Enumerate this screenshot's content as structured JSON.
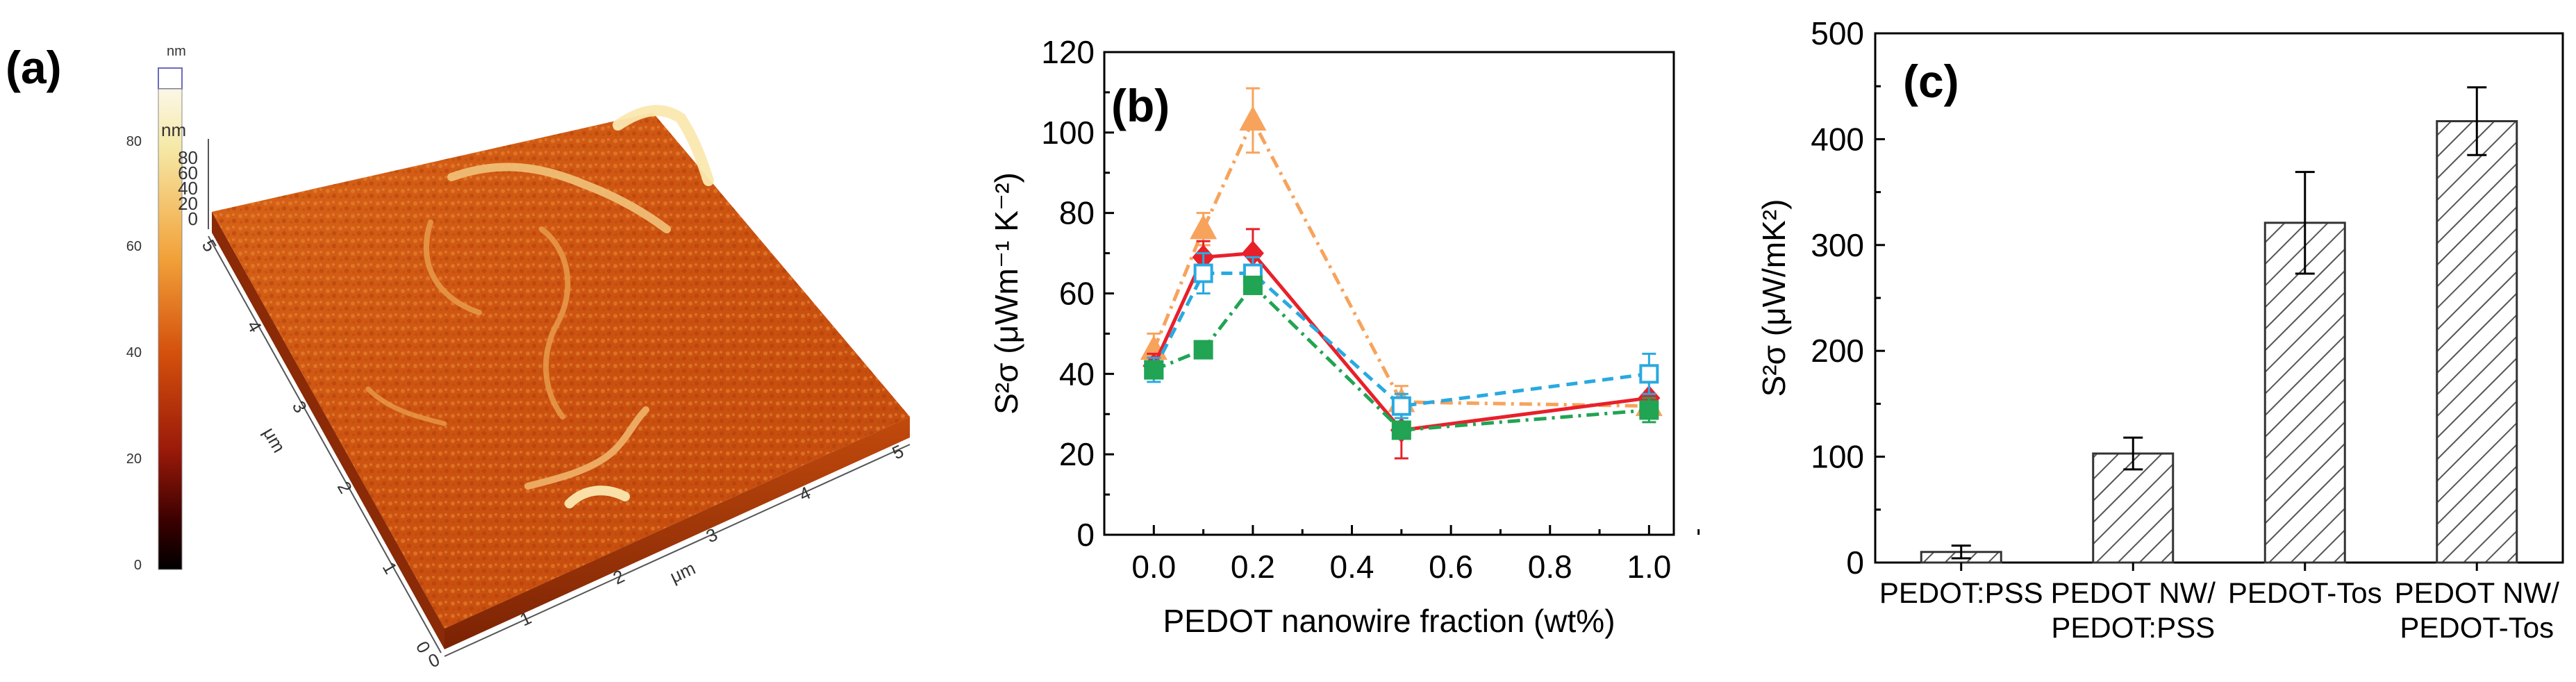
{
  "panels": {
    "a": {
      "label": "(a)"
    },
    "b": {
      "label": "(b)"
    },
    "c": {
      "label": "(c)"
    }
  },
  "afm": {
    "colorbar_unit": "nm",
    "colorbar_ticks": [
      "80",
      "60",
      "40",
      "20",
      "0"
    ],
    "z_unit": "nm",
    "z_ticks": [
      "80",
      "60",
      "40",
      "20",
      "0"
    ],
    "y_unit": "μm",
    "y_ticks": [
      "5",
      "4",
      "3",
      "2",
      "1",
      "0"
    ],
    "x_unit": "μm",
    "x_ticks": [
      "0",
      "1",
      "2",
      "3",
      "4",
      "5"
    ],
    "colors": {
      "low": "#3a0000",
      "mid": "#d4500c",
      "high": "#f8f2c0"
    }
  },
  "chart_data": [
    {
      "type": "line",
      "panel": "(b)",
      "xlabel": "PEDOT nanowire fraction (wt%)",
      "ylabel": "S²σ (μWm⁻¹ K⁻²)",
      "xlim": [
        -0.1,
        1.05
      ],
      "ylim": [
        0,
        120
      ],
      "xticks": [
        0.0,
        0.2,
        0.4,
        0.6,
        0.8,
        1.0
      ],
      "xtick_labels": [
        "0.0",
        "0.2",
        "0.4",
        "0.6",
        "0.8",
        "1.0"
      ],
      "yticks": [
        0,
        20,
        40,
        60,
        80,
        100,
        120
      ],
      "ytick_labels": [
        "0",
        "20",
        "40",
        "60",
        "80",
        "100",
        "120"
      ],
      "x": [
        0.0,
        0.1,
        0.2,
        0.5,
        1.0
      ],
      "series": [
        {
          "color": "#f7a35c",
          "marker": "triangle",
          "filled": true,
          "dash": "dashdot",
          "values": [
            46,
            76,
            103,
            33,
            32
          ],
          "errors": [
            4,
            4,
            8,
            4,
            3
          ]
        },
        {
          "color": "#e8202a",
          "marker": "diamond",
          "filled": true,
          "dash": "solid",
          "values": [
            42,
            69,
            70,
            26,
            34
          ],
          "errors": [
            3,
            4,
            6,
            7,
            4
          ]
        },
        {
          "color": "#2aa9e0",
          "marker": "square",
          "filled": false,
          "dash": "dashed",
          "values": [
            41,
            65,
            65,
            32,
            40
          ],
          "errors": [
            3,
            5,
            4,
            3,
            5
          ]
        },
        {
          "color": "#21a453",
          "marker": "square",
          "filled": true,
          "dash": "dashdot",
          "values": [
            41,
            46,
            62,
            26,
            31
          ],
          "errors": [
            2,
            1,
            2,
            2,
            3
          ]
        }
      ]
    },
    {
      "type": "bar",
      "panel": "(c)",
      "ylabel": "S²σ (μW/mK²)",
      "ylim": [
        0,
        500
      ],
      "yticks": [
        0,
        100,
        200,
        300,
        400,
        500
      ],
      "ytick_labels": [
        "0",
        "100",
        "200",
        "300",
        "400",
        "500"
      ],
      "categories": [
        "PEDOT:PSS",
        "PEDOT NW/ PEDOT:PSS",
        "PEDOT-Tos",
        "PEDOT NW/ PEDOT-Tos"
      ],
      "category_lines": [
        [
          "PEDOT:PSS"
        ],
        [
          "PEDOT NW/",
          "PEDOT:PSS"
        ],
        [
          "PEDOT-Tos"
        ],
        [
          "PEDOT NW/",
          "PEDOT-Tos"
        ]
      ],
      "values": [
        10,
        103,
        321,
        417
      ],
      "errors": [
        6,
        15,
        48,
        32
      ],
      "bar_style": "hatched"
    }
  ]
}
